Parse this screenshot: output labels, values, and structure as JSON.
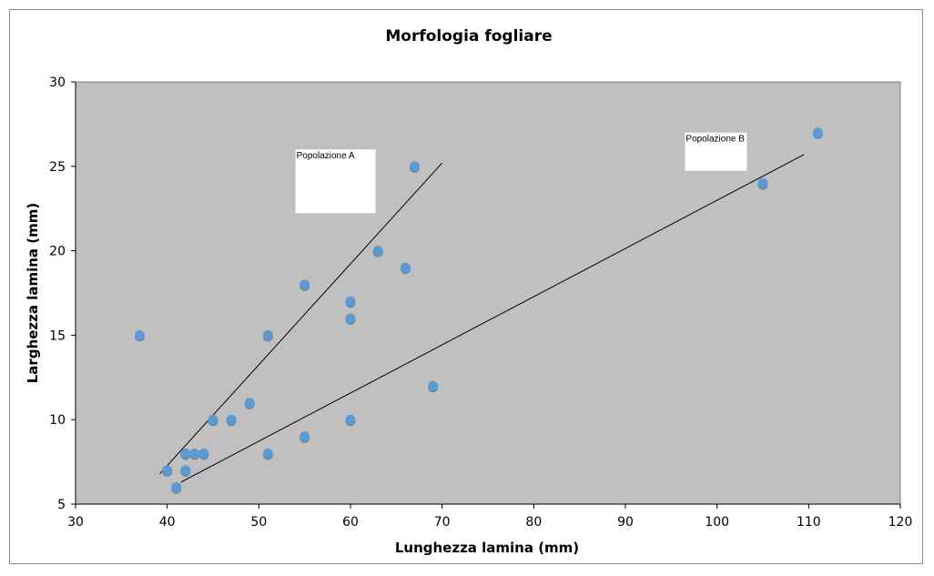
{
  "chart_data": {
    "type": "scatter",
    "title": "Morfologia fogliare",
    "xlabel": "Lunghezza lamina (mm)",
    "ylabel": "Larghezza lamina (mm)",
    "xlim": [
      30,
      120
    ],
    "ylim": [
      5,
      30
    ],
    "xticks": [
      "30",
      "40",
      "50",
      "60",
      "70",
      "80",
      "90",
      "100",
      "110",
      "120"
    ],
    "yticks": [
      "5",
      "10",
      "15",
      "20",
      "25",
      "30"
    ],
    "grid": false,
    "legend": "none",
    "colors": {
      "plot_background": "#c0c0c0",
      "marker": "#5b9bd5",
      "marker_shadow": "#7f7f7f",
      "trendline": "#000000"
    },
    "points": [
      {
        "x": 37,
        "y": 15
      },
      {
        "x": 40,
        "y": 7
      },
      {
        "x": 41,
        "y": 6
      },
      {
        "x": 42,
        "y": 8
      },
      {
        "x": 42,
        "y": 7
      },
      {
        "x": 43,
        "y": 8
      },
      {
        "x": 44,
        "y": 8
      },
      {
        "x": 45,
        "y": 10
      },
      {
        "x": 47,
        "y": 10
      },
      {
        "x": 49,
        "y": 11
      },
      {
        "x": 51,
        "y": 15
      },
      {
        "x": 51,
        "y": 8
      },
      {
        "x": 55,
        "y": 18
      },
      {
        "x": 55,
        "y": 9
      },
      {
        "x": 60,
        "y": 17
      },
      {
        "x": 60,
        "y": 16
      },
      {
        "x": 60,
        "y": 10
      },
      {
        "x": 63,
        "y": 20
      },
      {
        "x": 66,
        "y": 19
      },
      {
        "x": 67,
        "y": 25
      },
      {
        "x": 69,
        "y": 12
      },
      {
        "x": 105,
        "y": 24
      },
      {
        "x": 111,
        "y": 27
      }
    ],
    "trendlines": [
      {
        "x": [
          39.2,
          70.0
        ],
        "y": [
          6.8,
          25.2
        ]
      },
      {
        "x": [
          41.5,
          109.5
        ],
        "y": [
          6.3,
          25.7
        ]
      }
    ],
    "annotations": [
      {
        "text": "Popolazione A",
        "x": 54,
        "y": 26
      },
      {
        "text": "Popolazione B",
        "x": 96.5,
        "y": 27
      }
    ]
  }
}
